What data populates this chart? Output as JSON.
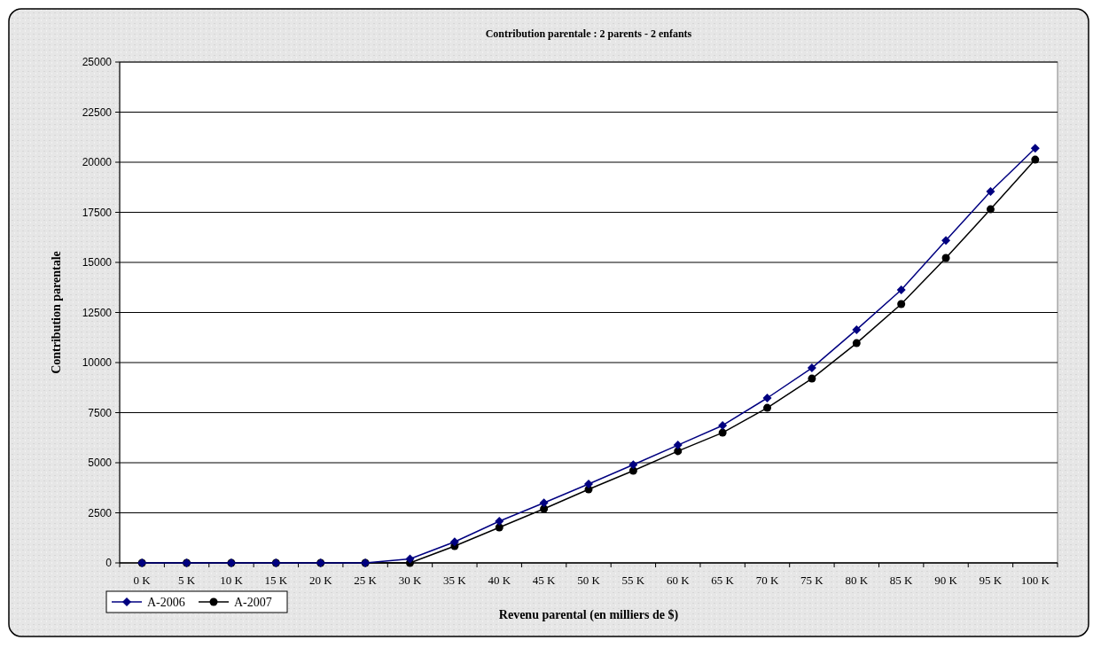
{
  "chart_data": {
    "type": "line",
    "title": "Contribution parentale : 2 parents - 2 enfants",
    "xlabel": "Revenu parental (en milliers de $)",
    "ylabel": "Contribution parentale",
    "categories": [
      "0 K",
      "5 K",
      "10 K",
      "15 K",
      "20 K",
      "25 K",
      "30 K",
      "35 K",
      "40 K",
      "45 K",
      "50 K",
      "55 K",
      "60 K",
      "65 K",
      "70 K",
      "75 K",
      "80 K",
      "85 K",
      "90 K",
      "95 K",
      "100 K"
    ],
    "series": [
      {
        "name": "A-2006",
        "color": "#000080",
        "marker": "diamond",
        "values": [
          0,
          0,
          0,
          0,
          0,
          0,
          200,
          1050,
          2080,
          3000,
          3940,
          4900,
          5880,
          6860,
          8230,
          9730,
          11640,
          13630,
          16100,
          18540,
          20700
        ]
      },
      {
        "name": "A-2007",
        "color": "#000000",
        "marker": "circle",
        "values": [
          0,
          0,
          0,
          0,
          0,
          0,
          0,
          840,
          1770,
          2700,
          3670,
          4600,
          5580,
          6500,
          7740,
          9200,
          10970,
          12920,
          15220,
          17650,
          20130
        ]
      }
    ],
    "ylim": [
      0,
      25000
    ],
    "yticks": [
      0,
      2500,
      5000,
      7500,
      10000,
      12500,
      15000,
      17500,
      20000,
      22500,
      25000
    ],
    "grid": "y",
    "legend": "bottom left",
    "line_style": "solid"
  }
}
